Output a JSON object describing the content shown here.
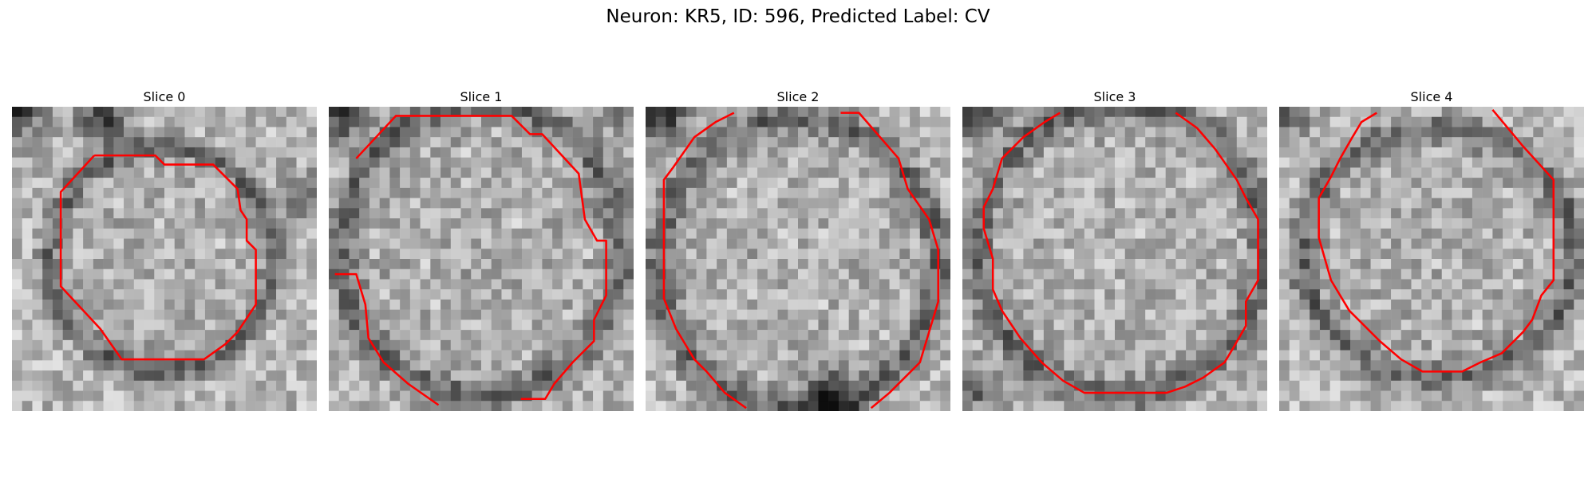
{
  "figure": {
    "title": "Neuron: KR5, ID: 596, Predicted Label: CV"
  },
  "contour_color": "#ff0000",
  "colormap": "gray",
  "panels": [
    {
      "title": "Slice 0",
      "seed": 11,
      "contour": [
        [
          0.27,
          0.16
        ],
        [
          0.47,
          0.16
        ],
        [
          0.5,
          0.19
        ],
        [
          0.66,
          0.19
        ],
        [
          0.74,
          0.27
        ],
        [
          0.75,
          0.34
        ],
        [
          0.77,
          0.37
        ],
        [
          0.77,
          0.44
        ],
        [
          0.8,
          0.47
        ],
        [
          0.8,
          0.65
        ],
        [
          0.74,
          0.74
        ],
        [
          0.7,
          0.78
        ],
        [
          0.63,
          0.83
        ],
        [
          0.36,
          0.83
        ],
        [
          0.29,
          0.73
        ],
        [
          0.16,
          0.59
        ],
        [
          0.16,
          0.28
        ]
      ],
      "darkCorners": [
        [
          0.02,
          0.02,
          0.9
        ],
        [
          0.3,
          0.05,
          0.8
        ],
        [
          0.95,
          0.3,
          0.6
        ]
      ],
      "ring": [
        0.49,
        0.5,
        0.36,
        0.36
      ]
    },
    {
      "title": "Slice 1",
      "seed": 23,
      "contour": [
        [
          0.09,
          0.17
        ],
        [
          0.22,
          0.03
        ],
        [
          0.6,
          0.03
        ],
        [
          0.66,
          0.09
        ],
        [
          0.7,
          0.09
        ],
        [
          0.82,
          0.22
        ],
        [
          0.84,
          0.37
        ],
        [
          0.88,
          0.44
        ],
        [
          0.91,
          0.44
        ],
        [
          0.91,
          0.62
        ],
        [
          0.87,
          0.7
        ],
        [
          0.87,
          0.77
        ],
        [
          0.8,
          0.84
        ],
        [
          0.74,
          0.91
        ],
        [
          0.71,
          0.96
        ],
        [
          0.63,
          0.96
        ]
      ],
      "contourB": [
        [
          0.02,
          0.55
        ],
        [
          0.09,
          0.55
        ],
        [
          0.12,
          0.65
        ],
        [
          0.13,
          0.76
        ],
        [
          0.18,
          0.84
        ],
        [
          0.26,
          0.91
        ],
        [
          0.36,
          0.98
        ]
      ],
      "darkCorners": [
        [
          0.05,
          0.02,
          0.9
        ],
        [
          0.95,
          0.02,
          0.3
        ]
      ],
      "ring": [
        0.5,
        0.47,
        0.45,
        0.47
      ]
    },
    {
      "title": "Slice 2",
      "seed": 37,
      "contour": [
        [
          0.64,
          0.02
        ],
        [
          0.7,
          0.02
        ],
        [
          0.83,
          0.17
        ],
        [
          0.86,
          0.27
        ],
        [
          0.93,
          0.37
        ],
        [
          0.96,
          0.47
        ],
        [
          0.96,
          0.64
        ],
        [
          0.93,
          0.74
        ],
        [
          0.9,
          0.84
        ],
        [
          0.8,
          0.94
        ],
        [
          0.74,
          0.99
        ]
      ],
      "contourB": [
        [
          0.29,
          0.02
        ],
        [
          0.23,
          0.05
        ],
        [
          0.16,
          0.1
        ],
        [
          0.09,
          0.2
        ],
        [
          0.06,
          0.24
        ],
        [
          0.06,
          0.63
        ],
        [
          0.1,
          0.73
        ],
        [
          0.16,
          0.83
        ],
        [
          0.2,
          0.87
        ],
        [
          0.26,
          0.94
        ],
        [
          0.33,
          0.99
        ]
      ],
      "darkCorners": [
        [
          0.05,
          0.02,
          0.9
        ],
        [
          0.6,
          0.95,
          0.9
        ]
      ],
      "ring": [
        0.5,
        0.52,
        0.45,
        0.47
      ]
    },
    {
      "title": "Slice 3",
      "seed": 49,
      "contour": [
        [
          0.7,
          0.02
        ],
        [
          0.77,
          0.07
        ],
        [
          0.83,
          0.14
        ],
        [
          0.9,
          0.24
        ],
        [
          0.93,
          0.3
        ],
        [
          0.97,
          0.37
        ],
        [
          0.97,
          0.57
        ],
        [
          0.93,
          0.64
        ],
        [
          0.93,
          0.72
        ],
        [
          0.89,
          0.79
        ],
        [
          0.86,
          0.84
        ],
        [
          0.79,
          0.89
        ],
        [
          0.73,
          0.92
        ],
        [
          0.67,
          0.94
        ],
        [
          0.4,
          0.94
        ],
        [
          0.33,
          0.9
        ],
        [
          0.26,
          0.84
        ],
        [
          0.19,
          0.76
        ],
        [
          0.13,
          0.67
        ],
        [
          0.1,
          0.6
        ],
        [
          0.1,
          0.5
        ],
        [
          0.07,
          0.4
        ],
        [
          0.07,
          0.33
        ],
        [
          0.1,
          0.27
        ],
        [
          0.13,
          0.17
        ],
        [
          0.2,
          0.1
        ],
        [
          0.27,
          0.05
        ],
        [
          0.32,
          0.02
        ]
      ],
      "darkCorners": [
        [
          0.05,
          0.02,
          0.8
        ],
        [
          0.05,
          0.92,
          0.6
        ]
      ],
      "ring": [
        0.52,
        0.47,
        0.46,
        0.47
      ]
    },
    {
      "title": "Slice 4",
      "seed": 61,
      "contour": [
        [
          0.7,
          0.01
        ],
        [
          0.8,
          0.13
        ],
        [
          0.9,
          0.24
        ],
        [
          0.9,
          0.44
        ],
        [
          0.9,
          0.57
        ],
        [
          0.86,
          0.62
        ],
        [
          0.83,
          0.7
        ],
        [
          0.8,
          0.74
        ],
        [
          0.73,
          0.81
        ],
        [
          0.66,
          0.84
        ],
        [
          0.6,
          0.87
        ],
        [
          0.47,
          0.87
        ],
        [
          0.4,
          0.83
        ],
        [
          0.33,
          0.77
        ],
        [
          0.23,
          0.67
        ],
        [
          0.17,
          0.57
        ],
        [
          0.15,
          0.5
        ],
        [
          0.13,
          0.43
        ],
        [
          0.13,
          0.3
        ],
        [
          0.17,
          0.23
        ],
        [
          0.2,
          0.17
        ],
        [
          0.24,
          0.1
        ],
        [
          0.27,
          0.05
        ],
        [
          0.32,
          0.02
        ]
      ],
      "darkCorners": [
        [
          0.03,
          0.02,
          0.6
        ]
      ],
      "ring": [
        0.52,
        0.48,
        0.44,
        0.4
      ]
    }
  ]
}
